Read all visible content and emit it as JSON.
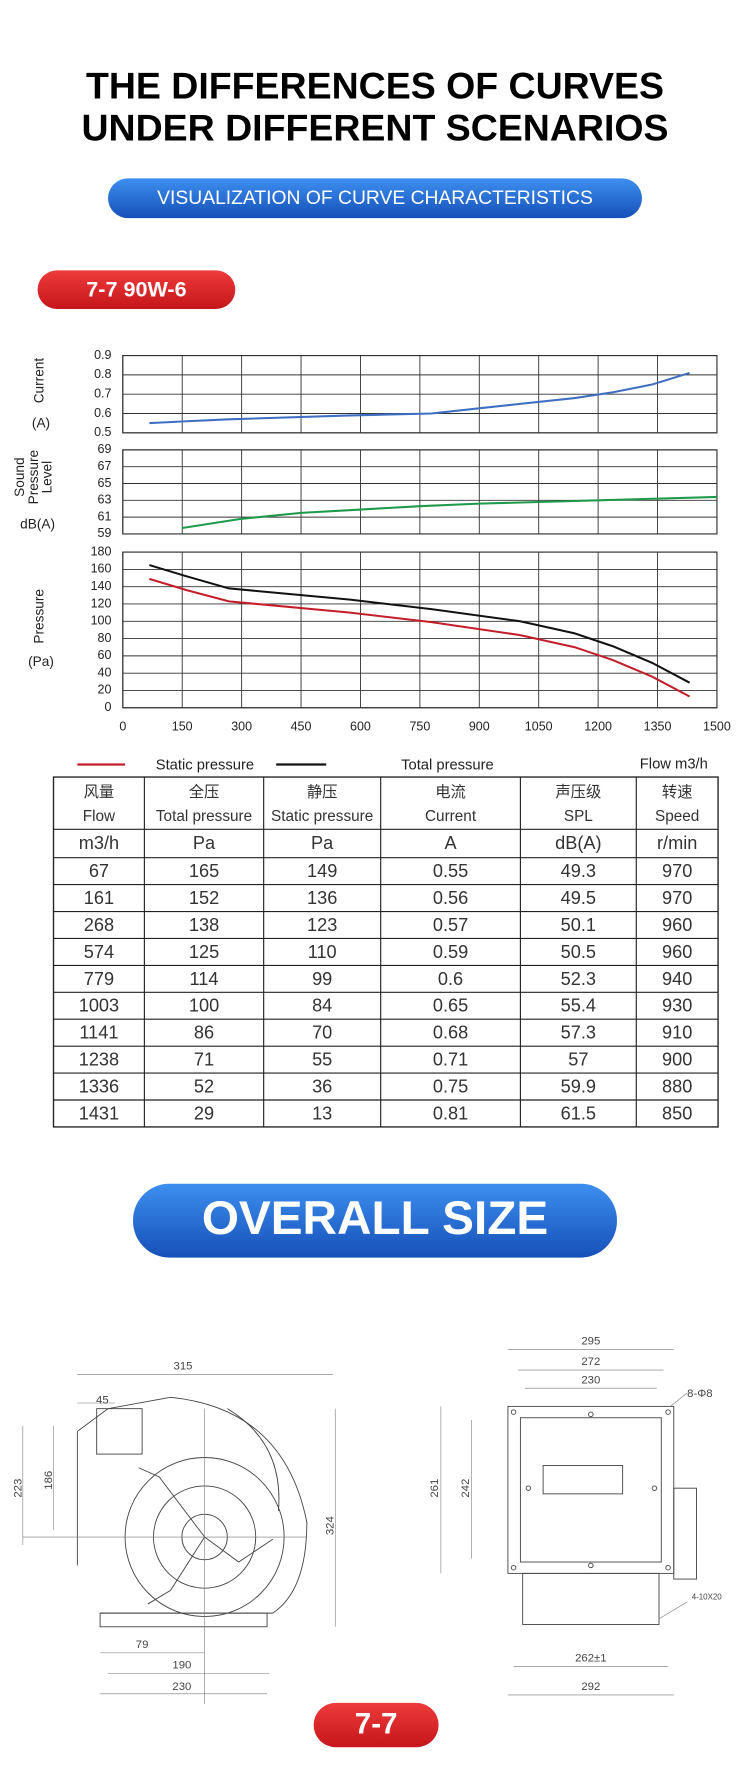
{
  "header": {
    "title_lines": [
      "THE DIFFERENCES OF CURVES",
      "UNDER DIFFERENT SCENARIOS"
    ],
    "subtitle": "VISUALIZATION OF CURVE CHARACTERISTICS",
    "model": "7-7  90W-6"
  },
  "chart_data": [
    {
      "type": "line",
      "ylabel_rotated": [
        "Current"
      ],
      "ylabel_unit": "(A)",
      "ylim": [
        0.5,
        0.9
      ],
      "yticks": [
        0.5,
        0.6,
        0.7,
        0.8,
        0.9
      ],
      "grid": true,
      "x": [
        67,
        161,
        268,
        574,
        779,
        1003,
        1141,
        1238,
        1336,
        1431
      ],
      "series": [
        {
          "name": "Current",
          "color": "#3f6fc2",
          "values": [
            0.55,
            0.56,
            0.57,
            0.59,
            0.6,
            0.65,
            0.68,
            0.71,
            0.75,
            0.81
          ]
        }
      ]
    },
    {
      "type": "line",
      "ylabel_rotated": [
        "Sound",
        "Pressure",
        "Level"
      ],
      "ylabel_unit": "dB(A)",
      "ylim": [
        59,
        69
      ],
      "yticks": [
        59,
        61,
        63,
        65,
        67,
        69
      ],
      "grid": true,
      "x": [
        150,
        300,
        450,
        600,
        750,
        900,
        1050,
        1200,
        1350,
        1500
      ],
      "series": [
        {
          "name": "Sound Pressure Level",
          "color": "#1e9a4a",
          "values": [
            59.7,
            60.8,
            61.5,
            61.9,
            62.3,
            62.6,
            62.8,
            63.0,
            63.2,
            63.4
          ]
        }
      ]
    },
    {
      "type": "line",
      "ylabel_rotated": [
        "Pressure"
      ],
      "ylabel_unit": "(Pa)",
      "ylim": [
        0,
        180
      ],
      "yticks": [
        0,
        20,
        40,
        60,
        80,
        100,
        120,
        140,
        160,
        180
      ],
      "grid": true,
      "xlim": [
        0,
        1500
      ],
      "xticks": [
        0,
        150,
        300,
        450,
        600,
        750,
        900,
        1050,
        1200,
        1350,
        1500
      ],
      "xlabel": "Flow m3/h",
      "x": [
        67,
        161,
        268,
        574,
        779,
        1003,
        1141,
        1238,
        1336,
        1431
      ],
      "series": [
        {
          "name": "Static pressure",
          "color": "#c41e2a",
          "values": [
            149,
            136,
            123,
            110,
            99,
            84,
            70,
            55,
            36,
            13
          ]
        },
        {
          "name": "Total pressure",
          "color": "#111111",
          "values": [
            165,
            152,
            138,
            125,
            114,
            100,
            86,
            71,
            52,
            29
          ]
        }
      ]
    }
  ],
  "table": {
    "header": [
      [
        "风量",
        "Flow"
      ],
      [
        "全压",
        "Total pressure"
      ],
      [
        "静压",
        "Static pressure"
      ],
      [
        "电流",
        "Current"
      ],
      [
        "声压级",
        "SPL"
      ],
      [
        "转速",
        "Speed"
      ]
    ],
    "units": [
      "m3/h",
      "Pa",
      "Pa",
      "A",
      "dB(A)",
      "r/min"
    ],
    "rows": [
      [
        67,
        165,
        149,
        0.55,
        49.3,
        970
      ],
      [
        161,
        152,
        136,
        0.56,
        49.5,
        970
      ],
      [
        268,
        138,
        123,
        0.57,
        50.1,
        960
      ],
      [
        574,
        125,
        110,
        0.59,
        50.5,
        960
      ],
      [
        779,
        114,
        99,
        0.6,
        52.3,
        940
      ],
      [
        1003,
        100,
        84,
        0.65,
        55.4,
        930
      ],
      [
        1141,
        86,
        70,
        0.68,
        57.3,
        910
      ],
      [
        1238,
        71,
        55,
        0.71,
        57,
        900
      ],
      [
        1336,
        52,
        36,
        0.75,
        59.9,
        880
      ],
      [
        1431,
        29,
        13,
        0.81,
        61.5,
        850
      ]
    ]
  },
  "size": {
    "title": "OVERALL SIZE",
    "left_dims": [
      "315",
      "45",
      "223",
      "186",
      "324",
      "79",
      "190",
      "230"
    ],
    "right_dims": [
      "295",
      "272",
      "230",
      "8-Φ8",
      "261",
      "242",
      "4-10X20",
      "262±1",
      "292"
    ],
    "model": "7-7"
  }
}
